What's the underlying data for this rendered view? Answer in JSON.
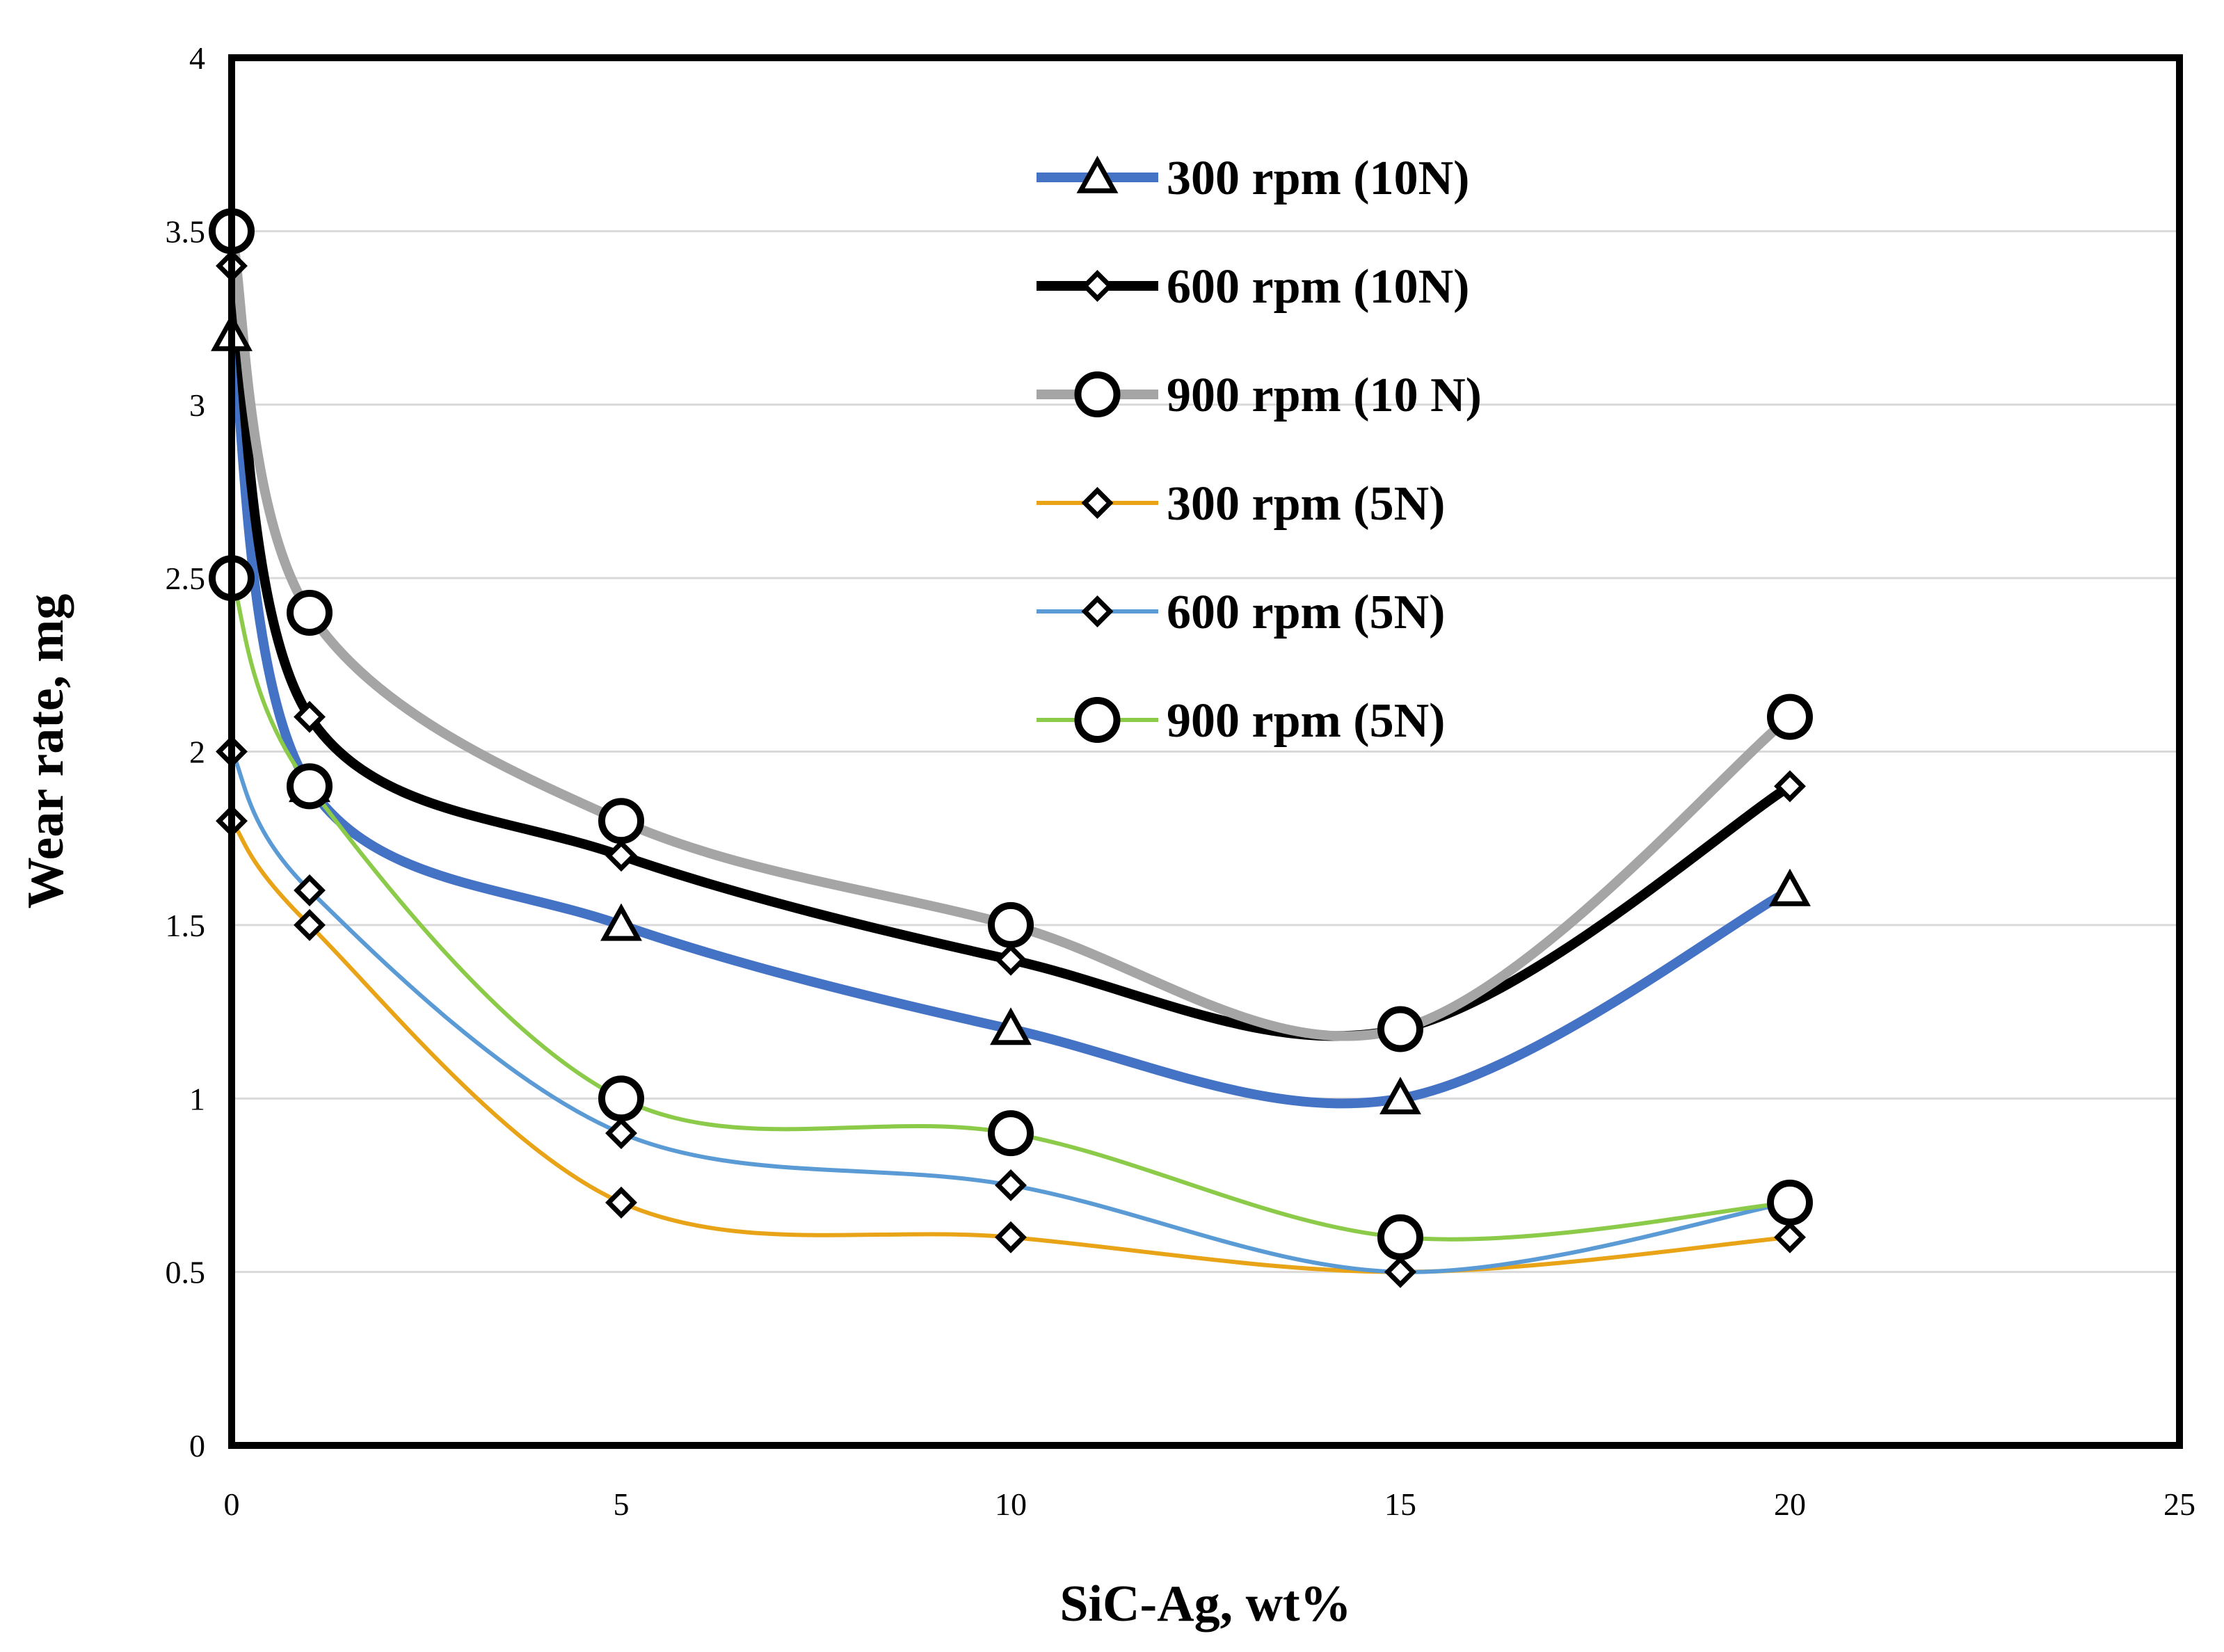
{
  "chart_data": {
    "type": "line",
    "title": "",
    "xlabel": "SiC-Ag, wt%",
    "ylabel": "Wear rate, mg",
    "xlim": [
      0,
      25
    ],
    "ylim": [
      0,
      4
    ],
    "xticks": [
      0,
      5,
      10,
      15,
      20,
      25
    ],
    "xtick_labels": [
      "0",
      "5",
      "10",
      "15",
      "20",
      "25"
    ],
    "yticks": [
      0,
      0.5,
      1,
      1.5,
      2,
      2.5,
      3,
      3.5,
      4
    ],
    "ytick_labels": [
      "0",
      "0.5",
      "1",
      "1.5",
      "2",
      "2.5",
      "3",
      "3.5",
      "4"
    ],
    "grid": "horizontal",
    "legend_position": "top-right",
    "x": [
      0,
      1,
      5,
      10,
      15,
      20
    ],
    "series": [
      {
        "name": "300 rpm (10N)",
        "color": "#4472C4",
        "marker": "triangle",
        "line_weight": "thick",
        "values": [
          3.2,
          1.9,
          1.5,
          1.2,
          1.0,
          1.6
        ]
      },
      {
        "name": "600 rpm (10N)",
        "color": "#000000",
        "marker": "diamond",
        "line_weight": "thick",
        "values": [
          3.4,
          2.1,
          1.7,
          1.4,
          1.2,
          1.9
        ]
      },
      {
        "name": "900 rpm (10 N)",
        "color": "#A5A5A5",
        "marker": "circle",
        "line_weight": "thick",
        "values": [
          3.5,
          2.4,
          1.8,
          1.5,
          1.2,
          2.1
        ]
      },
      {
        "name": "300 rpm (5N)",
        "color": "#E8A317",
        "marker": "diamond",
        "line_weight": "thin",
        "values": [
          1.8,
          1.5,
          0.7,
          0.6,
          0.5,
          0.6
        ]
      },
      {
        "name": "600 rpm (5N)",
        "color": "#5B9BD5",
        "marker": "diamond",
        "line_weight": "thin",
        "values": [
          2.0,
          1.6,
          0.9,
          0.75,
          0.5,
          0.7
        ]
      },
      {
        "name": "900 rpm (5N)",
        "color": "#8CCB4A",
        "marker": "circle",
        "line_weight": "thin",
        "values": [
          2.5,
          1.9,
          1.0,
          0.9,
          0.6,
          0.7
        ]
      }
    ]
  }
}
